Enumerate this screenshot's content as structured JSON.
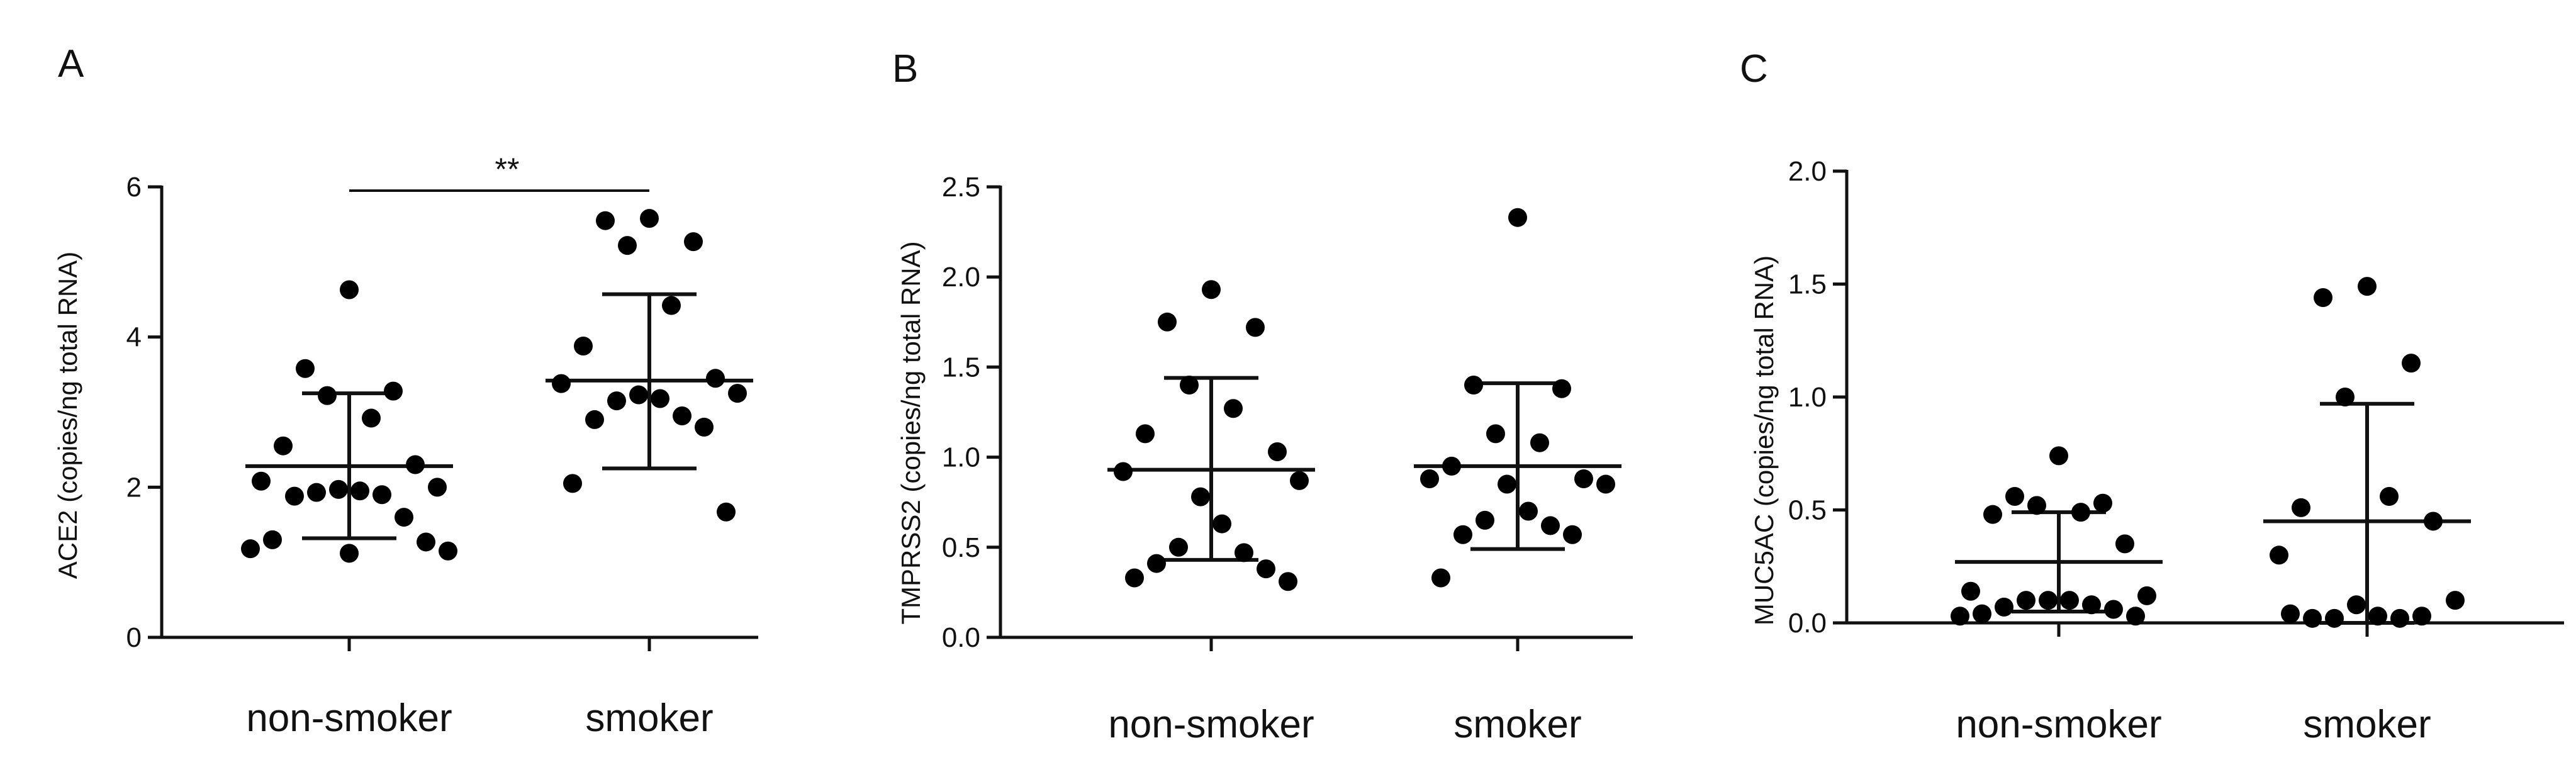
{
  "chart_data": [
    {
      "type": "scatter",
      "panel": "A",
      "ylabel": "ACE2 (copies/ng total RNA)",
      "ylim": [
        0,
        6
      ],
      "yticks": [
        0,
        2,
        4,
        6
      ],
      "ytick_labels": [
        "0",
        "2",
        "4",
        "6"
      ],
      "categories": [
        "non-smoker",
        "smoker"
      ],
      "groups": [
        {
          "category": "non-smoker",
          "mean": 2.28,
          "sd_low": 1.32,
          "sd_high": 3.25,
          "values": [
            4.63,
            3.58,
            3.28,
            3.22,
            2.92,
            2.55,
            2.3,
            2.08,
            2.0,
            1.97,
            1.95,
            1.93,
            1.9,
            1.88,
            1.6,
            1.3,
            1.27,
            1.18,
            1.15,
            1.12
          ]
        },
        {
          "category": "smoker",
          "mean": 3.42,
          "sd_low": 2.25,
          "sd_high": 4.57,
          "values": [
            5.58,
            5.55,
            5.27,
            5.22,
            4.42,
            3.88,
            3.45,
            3.38,
            3.25,
            3.23,
            3.18,
            3.15,
            2.95,
            2.9,
            2.8,
            2.05,
            1.67
          ]
        }
      ],
      "annotation": {
        "text": "**",
        "from": "non-smoker",
        "to": "smoker",
        "y": 5.95
      }
    },
    {
      "type": "scatter",
      "panel": "B",
      "ylabel": "TMPRSS2 (copies/ng total RNA)",
      "ylim": [
        0,
        2.5
      ],
      "yticks": [
        0,
        0.5,
        1,
        1.5,
        2,
        2.5
      ],
      "ytick_labels": [
        "0.0",
        "0.5",
        "1.0",
        "1.5",
        "2.0",
        "2.5"
      ],
      "categories": [
        "non-smoker",
        "smoker"
      ],
      "groups": [
        {
          "category": "non-smoker",
          "mean": 0.93,
          "sd_low": 0.43,
          "sd_high": 1.44,
          "values": [
            1.93,
            1.75,
            1.72,
            1.4,
            1.27,
            1.13,
            1.03,
            0.92,
            0.87,
            0.78,
            0.63,
            0.5,
            0.47,
            0.41,
            0.38,
            0.33,
            0.31
          ]
        },
        {
          "category": "smoker",
          "mean": 0.95,
          "sd_low": 0.49,
          "sd_high": 1.41,
          "values": [
            2.33,
            1.4,
            1.38,
            1.13,
            1.08,
            0.95,
            0.88,
            0.88,
            0.85,
            0.85,
            0.7,
            0.65,
            0.62,
            0.57,
            0.57,
            0.33
          ]
        }
      ]
    },
    {
      "type": "scatter",
      "panel": "C",
      "ylabel": "MUC5AC (copies/ng total RNA)",
      "ylim": [
        0,
        2
      ],
      "yticks": [
        0,
        0.5,
        1,
        1.5,
        2
      ],
      "ytick_labels": [
        "0.0",
        "0.5",
        "1.0",
        "1.5",
        "2.0"
      ],
      "categories": [
        "non-smoker",
        "smoker"
      ],
      "groups": [
        {
          "category": "non-smoker",
          "mean": 0.27,
          "sd_low": 0.05,
          "sd_high": 0.49,
          "values": [
            0.74,
            0.56,
            0.53,
            0.52,
            0.49,
            0.48,
            0.35,
            0.14,
            0.12,
            0.1,
            0.1,
            0.1,
            0.08,
            0.07,
            0.06,
            0.04,
            0.03,
            0.03
          ]
        },
        {
          "category": "smoker",
          "mean": 0.45,
          "sd_low": 0.0,
          "sd_high": 0.97,
          "values": [
            1.49,
            1.44,
            1.15,
            1.0,
            0.56,
            0.51,
            0.45,
            0.3,
            0.1,
            0.08,
            0.03,
            0.02,
            0.02,
            0.02,
            0.03,
            0.04
          ]
        }
      ]
    }
  ]
}
